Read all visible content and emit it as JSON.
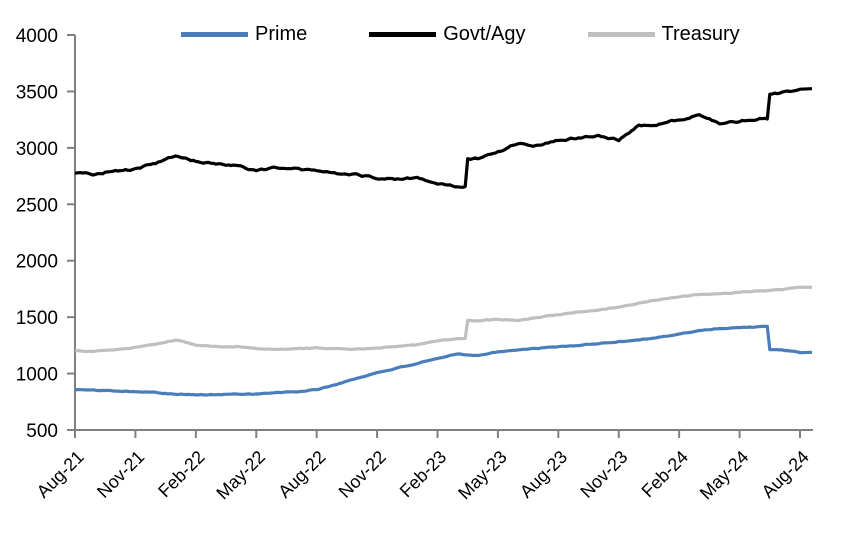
{
  "chart_data": {
    "type": "line",
    "title": "",
    "xlabel": "",
    "ylabel": "",
    "grid": false,
    "legend_position": "top",
    "background_color": "#ffffff",
    "axis_color": "#808080",
    "text_color": "#000000",
    "ylim": [
      500,
      4000
    ],
    "yticks": [
      500,
      1000,
      1500,
      2000,
      2500,
      3000,
      3500,
      4000
    ],
    "x_tick_labels": [
      "Aug-21",
      "Nov-21",
      "Feb-22",
      "May-22",
      "Aug-22",
      "Nov-22",
      "Feb-23",
      "May-23",
      "Aug-23",
      "Nov-23",
      "Feb-24",
      "May-24",
      "Aug-24"
    ],
    "categories": [
      "Aug-21",
      "Sep-21",
      "Oct-21",
      "Nov-21",
      "Dec-21",
      "Jan-22",
      "Feb-22",
      "Mar-22",
      "Apr-22",
      "May-22",
      "Jun-22",
      "Jul-22",
      "Aug-22",
      "Sep-22",
      "Oct-22",
      "Nov-22",
      "Dec-22",
      "Jan-23",
      "Feb-23",
      "Mar-23",
      "Apr-23",
      "May-23",
      "Jun-23",
      "Jul-23",
      "Aug-23",
      "Sep-23",
      "Oct-23",
      "Nov-23",
      "Dec-23",
      "Jan-24",
      "Feb-24",
      "Mar-24",
      "Apr-24",
      "May-24",
      "Jun-24",
      "Jul-24",
      "Aug-24"
    ],
    "series": [
      {
        "name": "Prime",
        "color": "#4a7ebb",
        "values": [
          858,
          852,
          848,
          842,
          832,
          820,
          812,
          812,
          818,
          820,
          830,
          838,
          858,
          905,
          958,
          1008,
          1048,
          1090,
          1130,
          1175,
          1160,
          1195,
          1210,
          1222,
          1238,
          1250,
          1265,
          1282,
          1300,
          1322,
          1348,
          1382,
          1400,
          1408,
          1415,
          1212,
          1185
        ]
      },
      {
        "name": "Govt/Agy",
        "color": "#000000",
        "values": [
          2780,
          2762,
          2800,
          2812,
          2862,
          2930,
          2880,
          2858,
          2848,
          2795,
          2828,
          2812,
          2795,
          2775,
          2758,
          2735,
          2722,
          2735,
          2680,
          2658,
          2905,
          2962,
          3042,
          3022,
          3070,
          3090,
          3112,
          3070,
          3200,
          3212,
          3248,
          3290,
          3220,
          3235,
          3262,
          3480,
          3520
        ]
      },
      {
        "name": "Treasury",
        "color": "#bfbfbf",
        "values": [
          1200,
          1200,
          1210,
          1232,
          1262,
          1300,
          1252,
          1238,
          1240,
          1222,
          1216,
          1220,
          1226,
          1220,
          1216,
          1226,
          1240,
          1256,
          1290,
          1310,
          1470,
          1480,
          1470,
          1500,
          1520,
          1545,
          1565,
          1592,
          1625,
          1655,
          1680,
          1700,
          1710,
          1720,
          1730,
          1742,
          1765
        ]
      }
    ]
  }
}
